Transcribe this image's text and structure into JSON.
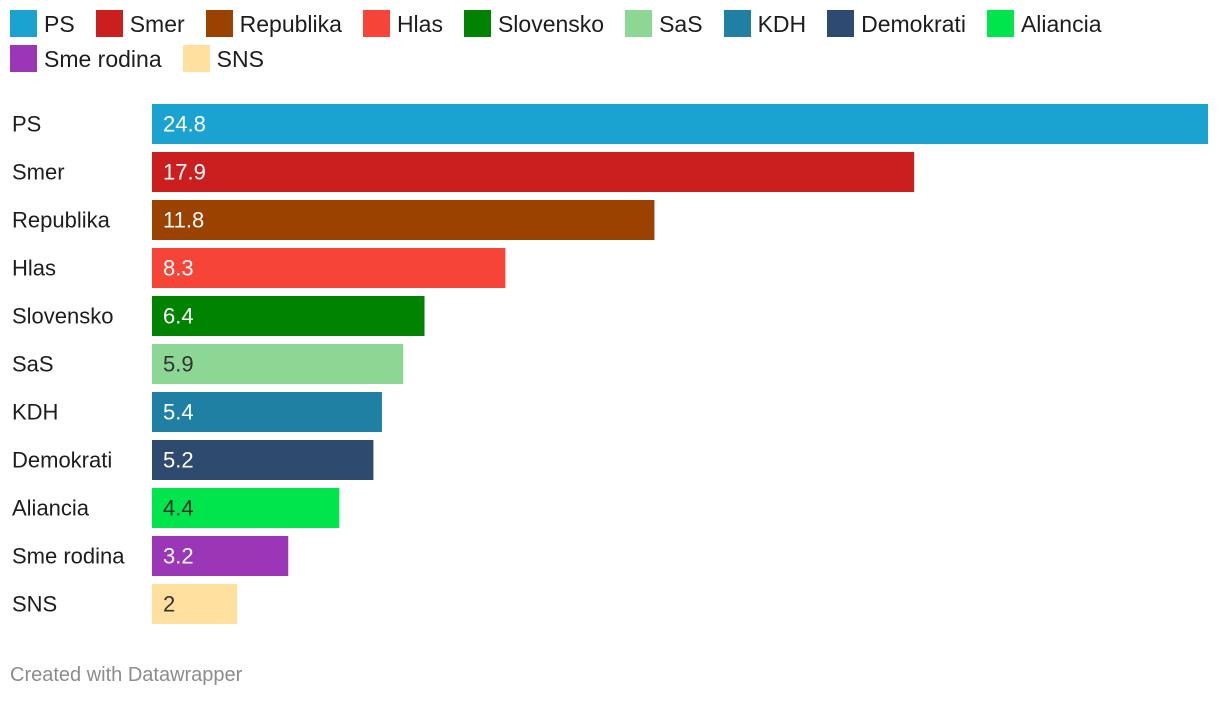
{
  "chart_data": {
    "type": "bar",
    "orientation": "horizontal",
    "title": "",
    "xlabel": "",
    "ylabel": "",
    "xlim": [
      0,
      24.8
    ],
    "grid": false,
    "legend_position": "top",
    "categories": [
      "PS",
      "Smer",
      "Republika",
      "Hlas",
      "Slovensko",
      "SaS",
      "KDH",
      "Demokrati",
      "Aliancia",
      "Sme rodina",
      "SNS"
    ],
    "values": [
      24.8,
      17.9,
      11.8,
      8.3,
      6.4,
      5.9,
      5.4,
      5.2,
      4.4,
      3.2,
      2
    ],
    "value_labels": [
      "24.8",
      "17.9",
      "11.8",
      "8.3",
      "6.4",
      "5.9",
      "5.4",
      "5.2",
      "4.4",
      "3.2",
      "2"
    ],
    "colors": [
      "#1aa3d0",
      "#cb1f1f",
      "#9b4200",
      "#f74438",
      "#008301",
      "#8dd794",
      "#1f80a3",
      "#2e4a6e",
      "#00e54c",
      "#9b36b7",
      "#ffe09e"
    ],
    "label_colors": [
      "#ffffff",
      "#ffffff",
      "#ffffff",
      "#ffffff",
      "#ffffff",
      "#333333",
      "#ffffff",
      "#ffffff",
      "#333333",
      "#ffffff",
      "#333333"
    ]
  },
  "legend": {
    "items": [
      {
        "label": "PS",
        "color": "#1aa3d0"
      },
      {
        "label": "Smer",
        "color": "#cb1f1f"
      },
      {
        "label": "Republika",
        "color": "#9b4200"
      },
      {
        "label": "Hlas",
        "color": "#f74438"
      },
      {
        "label": "Slovensko",
        "color": "#008301"
      },
      {
        "label": "SaS",
        "color": "#8dd794"
      },
      {
        "label": "KDH",
        "color": "#1f80a3"
      },
      {
        "label": "Demokrati",
        "color": "#2e4a6e"
      },
      {
        "label": "Aliancia",
        "color": "#00e54c"
      },
      {
        "label": "Sme rodina",
        "color": "#9b36b7"
      },
      {
        "label": "SNS",
        "color": "#ffe09e"
      }
    ]
  },
  "footer": {
    "credit": "Created with Datawrapper"
  }
}
